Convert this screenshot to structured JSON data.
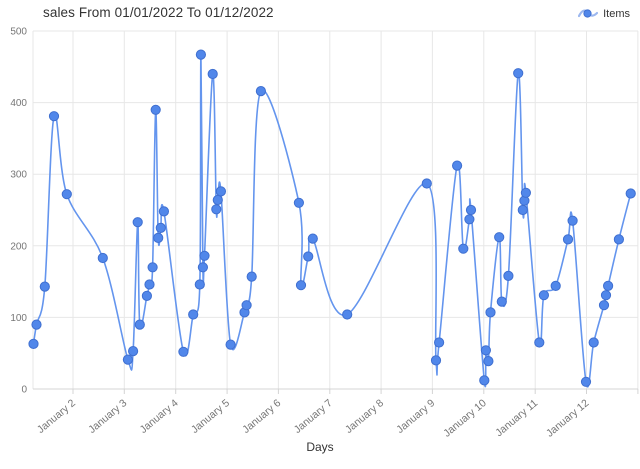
{
  "chart_data": {
    "type": "line",
    "title": "sales From 01/01/2022 To 01/12/2022",
    "xlabel": "Days",
    "ylim": [
      0,
      500
    ],
    "y_ticks": [
      0,
      100,
      200,
      300,
      400,
      500
    ],
    "x_ticks": [
      {
        "day": 2,
        "label": "January 2"
      },
      {
        "day": 3,
        "label": "January 3"
      },
      {
        "day": 4,
        "label": "January 4"
      },
      {
        "day": 5,
        "label": "January 5"
      },
      {
        "day": 6,
        "label": "January 6"
      },
      {
        "day": 7,
        "label": "January 7"
      },
      {
        "day": 8,
        "label": "January 8"
      },
      {
        "day": 9,
        "label": "January 9"
      },
      {
        "day": 10,
        "label": "January 10"
      },
      {
        "day": 11,
        "label": "January 11"
      },
      {
        "day": 12,
        "label": "January 12"
      }
    ],
    "x_domain_days": [
      1.2,
      13.0
    ],
    "grid": true,
    "legend": {
      "position": "top-right"
    },
    "colors": {
      "line": "#6495ee",
      "point_fill": "#5187ea",
      "point_stroke": "#3f6fd0",
      "grid": "#e7e7e7",
      "axis": "#d4d4d4",
      "tick_label": "#767676",
      "legend_wave": "#9db8ef"
    },
    "series": [
      {
        "name": "Items",
        "points": [
          [
            1.23,
            63
          ],
          [
            1.29,
            90
          ],
          [
            1.45,
            143
          ],
          [
            1.63,
            381
          ],
          [
            1.88,
            272
          ],
          [
            2.58,
            183
          ],
          [
            3.07,
            41
          ],
          [
            3.17,
            53
          ],
          [
            3.26,
            233
          ],
          [
            3.3,
            90
          ],
          [
            3.44,
            130
          ],
          [
            3.49,
            146
          ],
          [
            3.55,
            170
          ],
          [
            3.61,
            390
          ],
          [
            3.66,
            211
          ],
          [
            3.71,
            225
          ],
          [
            3.77,
            248
          ],
          [
            4.15,
            52
          ],
          [
            4.34,
            104
          ],
          [
            4.47,
            146
          ],
          [
            4.49,
            467
          ],
          [
            4.53,
            170
          ],
          [
            4.56,
            186
          ],
          [
            4.72,
            440
          ],
          [
            4.79,
            251
          ],
          [
            4.82,
            264
          ],
          [
            4.88,
            276
          ],
          [
            5.07,
            62
          ],
          [
            5.34,
            107
          ],
          [
            5.38,
            117
          ],
          [
            5.48,
            157
          ],
          [
            5.66,
            416
          ],
          [
            6.4,
            260
          ],
          [
            6.44,
            145
          ],
          [
            6.58,
            185
          ],
          [
            6.67,
            210
          ],
          [
            7.34,
            104
          ],
          [
            8.89,
            287
          ],
          [
            9.07,
            40
          ],
          [
            9.13,
            65
          ],
          [
            9.48,
            312
          ],
          [
            9.6,
            196
          ],
          [
            9.72,
            237
          ],
          [
            9.75,
            250
          ],
          [
            10.01,
            12
          ],
          [
            10.04,
            54
          ],
          [
            10.09,
            39
          ],
          [
            10.13,
            107
          ],
          [
            10.3,
            212
          ],
          [
            10.35,
            122
          ],
          [
            10.48,
            158
          ],
          [
            10.67,
            441
          ],
          [
            10.76,
            250
          ],
          [
            10.79,
            263
          ],
          [
            10.82,
            274
          ],
          [
            11.08,
            65
          ],
          [
            11.17,
            131
          ],
          [
            11.4,
            144
          ],
          [
            11.64,
            209
          ],
          [
            11.73,
            235
          ],
          [
            11.99,
            10
          ],
          [
            12.14,
            65
          ],
          [
            12.34,
            117
          ],
          [
            12.38,
            131
          ],
          [
            12.42,
            144
          ],
          [
            12.63,
            209
          ],
          [
            12.86,
            273
          ]
        ]
      }
    ]
  }
}
